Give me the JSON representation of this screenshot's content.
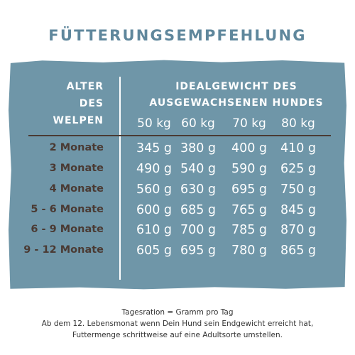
{
  "title": "FÜTTERUNGSEMPFEHLUNG",
  "header": {
    "age_lines": [
      "ALTER",
      "DES",
      "WELPEN"
    ],
    "ideal_lines": [
      "IDEALGEWICHT DES",
      "AUSGEWACHSENEN HUNDES"
    ],
    "weights": [
      "50 kg",
      "60 kg",
      "70 kg",
      "80 kg"
    ]
  },
  "rows": [
    {
      "age": "2 Monate",
      "values": [
        "345 g",
        "380 g",
        "400 g",
        "410 g"
      ]
    },
    {
      "age": "3 Monate",
      "values": [
        "490 g",
        "540 g",
        "590 g",
        "625 g"
      ]
    },
    {
      "age": "4 Monate",
      "values": [
        "560 g",
        "630 g",
        "695 g",
        "750 g"
      ]
    },
    {
      "age": "5 - 6 Monate",
      "values": [
        "600 g",
        "685 g",
        "765 g",
        "845 g"
      ]
    },
    {
      "age": "6 - 9 Monate",
      "values": [
        "610 g",
        "700 g",
        "785 g",
        "870 g"
      ]
    },
    {
      "age": "9 - 12 Monate",
      "values": [
        "605 g",
        "695 g",
        "780 g",
        "865 g"
      ]
    }
  ],
  "footer": [
    "Tagesration = Gramm pro Tag",
    "Ab dem 12. Lebensmonat wenn Dein Hund sein Endgewicht erreicht hat,",
    "Futtermenge schrittweise auf eine Adultsorte umstellen."
  ],
  "colors": {
    "background": "#6f96a8",
    "title": "#5f879c",
    "age_text": "#4a3a33",
    "value_text": "#ffffff"
  }
}
